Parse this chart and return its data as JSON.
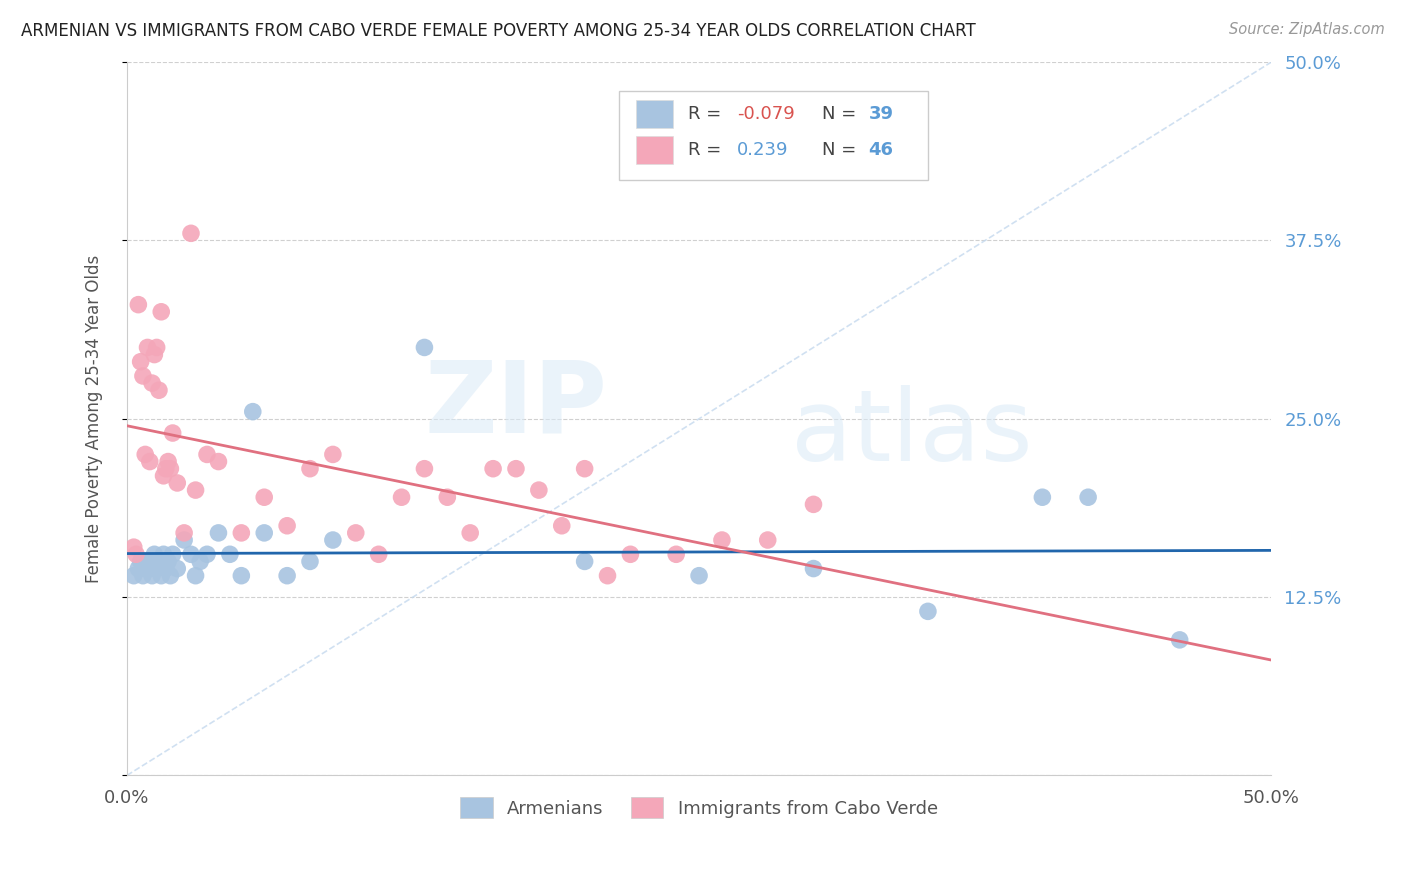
{
  "title": "ARMENIAN VS IMMIGRANTS FROM CABO VERDE FEMALE POVERTY AMONG 25-34 YEAR OLDS CORRELATION CHART",
  "source": "Source: ZipAtlas.com",
  "ylabel": "Female Poverty Among 25-34 Year Olds",
  "xlim": [
    0.0,
    0.5
  ],
  "ylim": [
    0.0,
    0.5
  ],
  "ytick_vals": [
    0.0,
    0.125,
    0.25,
    0.375,
    0.5
  ],
  "ytick_labels": [
    "",
    "12.5%",
    "25.0%",
    "37.5%",
    "50.0%"
  ],
  "xtick_vals": [
    0.0,
    0.1,
    0.2,
    0.3,
    0.4,
    0.5
  ],
  "xtick_labels": [
    "0.0%",
    "",
    "",
    "",
    "",
    "50.0%"
  ],
  "armenian_color": "#a8c4e0",
  "cabo_verde_color": "#f4a7b9",
  "armenian_line_color": "#2166ac",
  "cabo_verde_line_color": "#e07080",
  "watermark_zip": "ZIP",
  "watermark_atlas": "atlas",
  "armenians_x": [
    0.003,
    0.005,
    0.006,
    0.007,
    0.008,
    0.009,
    0.01,
    0.011,
    0.012,
    0.013,
    0.014,
    0.015,
    0.016,
    0.017,
    0.018,
    0.019,
    0.02,
    0.022,
    0.025,
    0.028,
    0.03,
    0.032,
    0.035,
    0.04,
    0.045,
    0.05,
    0.055,
    0.06,
    0.07,
    0.08,
    0.09,
    0.13,
    0.2,
    0.25,
    0.3,
    0.35,
    0.4,
    0.42,
    0.46
  ],
  "armenians_y": [
    0.14,
    0.145,
    0.15,
    0.14,
    0.145,
    0.15,
    0.145,
    0.14,
    0.155,
    0.145,
    0.15,
    0.14,
    0.155,
    0.145,
    0.15,
    0.14,
    0.155,
    0.145,
    0.165,
    0.155,
    0.14,
    0.15,
    0.155,
    0.17,
    0.155,
    0.14,
    0.255,
    0.17,
    0.14,
    0.15,
    0.165,
    0.3,
    0.15,
    0.14,
    0.145,
    0.115,
    0.195,
    0.195,
    0.095
  ],
  "caboverde_x": [
    0.003,
    0.004,
    0.005,
    0.006,
    0.007,
    0.008,
    0.009,
    0.01,
    0.011,
    0.012,
    0.013,
    0.014,
    0.015,
    0.016,
    0.017,
    0.018,
    0.019,
    0.02,
    0.022,
    0.025,
    0.028,
    0.03,
    0.035,
    0.04,
    0.05,
    0.06,
    0.07,
    0.08,
    0.09,
    0.1,
    0.11,
    0.12,
    0.13,
    0.14,
    0.15,
    0.16,
    0.17,
    0.18,
    0.19,
    0.2,
    0.21,
    0.22,
    0.24,
    0.26,
    0.28,
    0.3
  ],
  "caboverde_y": [
    0.16,
    0.155,
    0.33,
    0.29,
    0.28,
    0.225,
    0.3,
    0.22,
    0.275,
    0.295,
    0.3,
    0.27,
    0.325,
    0.21,
    0.215,
    0.22,
    0.215,
    0.24,
    0.205,
    0.17,
    0.38,
    0.2,
    0.225,
    0.22,
    0.17,
    0.195,
    0.175,
    0.215,
    0.225,
    0.17,
    0.155,
    0.195,
    0.215,
    0.195,
    0.17,
    0.215,
    0.215,
    0.2,
    0.175,
    0.215,
    0.14,
    0.155,
    0.155,
    0.165,
    0.165,
    0.19
  ],
  "legend_entries": [
    {
      "color": "#a8c4e0",
      "r": "-0.079",
      "n": "39",
      "r_color": "#d9534f",
      "n_color": "#5b9bd5"
    },
    {
      "color": "#f4a7b9",
      "r": "0.239",
      "n": "46",
      "r_color": "#5b9bd5",
      "n_color": "#5b9bd5"
    }
  ]
}
